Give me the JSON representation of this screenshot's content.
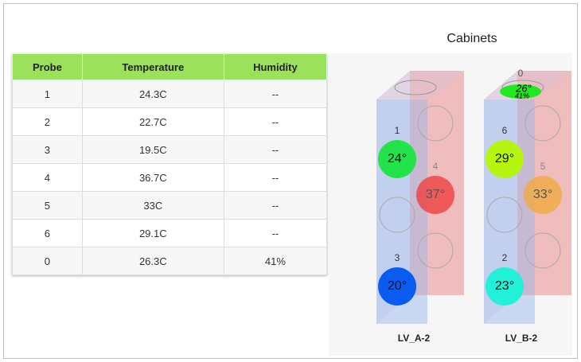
{
  "table": {
    "header": [
      "Probe",
      "Temperature",
      "Humidity"
    ],
    "rows": [
      [
        "1",
        "24.3C",
        "--"
      ],
      [
        "2",
        "22.7C",
        "--"
      ],
      [
        "3",
        "19.5C",
        "--"
      ],
      [
        "4",
        "36.7C",
        "--"
      ],
      [
        "5",
        "33C",
        "--"
      ],
      [
        "6",
        "29.1C",
        "--"
      ],
      [
        "0",
        "26.3C",
        "41%"
      ]
    ]
  },
  "cabinets": {
    "title": "Cabinets",
    "units": [
      {
        "name": "LV_A-2",
        "probes": [
          {
            "id": "1",
            "reading": "24°",
            "color": "#22e34a"
          },
          {
            "id": "4",
            "reading": "37°",
            "color": "#ef4040"
          },
          {
            "id": "3",
            "reading": "20°",
            "color": "#0a5cf0"
          }
        ]
      },
      {
        "name": "LV_B-2",
        "probes": [
          {
            "id": "6",
            "reading": "29°",
            "color": "#b5f510"
          },
          {
            "id": "5",
            "reading": "33°",
            "color": "#f0aa40"
          },
          {
            "id": "2",
            "reading": "23°",
            "color": "#22f0d8"
          },
          {
            "id": "0",
            "reading": "26°",
            "humidity": "41%",
            "color": "#22e822"
          }
        ]
      }
    ]
  }
}
